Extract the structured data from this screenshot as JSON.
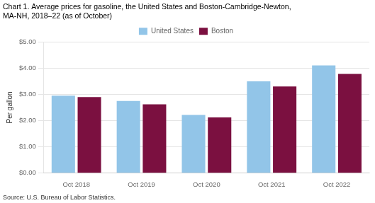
{
  "chart_data": {
    "type": "bar",
    "title": "Chart 1. Average prices for gasoline, the United States and Boston-Cambridge-Newton,\nMA-NH, 2018–22 (as of October)",
    "ylabel": "Per gallon",
    "source": "Source: U.S. Bureau of Labor Statistics.",
    "categories": [
      "Oct 2018",
      "Oct 2019",
      "Oct 2020",
      "Oct 2021",
      "Oct 2022"
    ],
    "series": [
      {
        "name": "United States",
        "color": "#92C5E8",
        "values": [
          2.95,
          2.75,
          2.22,
          3.5,
          4.1
        ]
      },
      {
        "name": "Boston",
        "color": "#7B1040",
        "values": [
          2.9,
          2.62,
          2.12,
          3.3,
          3.78
        ]
      }
    ],
    "ylim": [
      0,
      5.0
    ],
    "yticks": [
      {
        "value": 0.0,
        "label": "$0.00"
      },
      {
        "value": 1.0,
        "label": "$1.00"
      },
      {
        "value": 2.0,
        "label": "$2.00"
      },
      {
        "value": 3.0,
        "label": "$3.00"
      },
      {
        "value": 4.0,
        "label": "$4.00"
      },
      {
        "value": 5.0,
        "label": "$5.00"
      }
    ],
    "grid": true,
    "legend": "top"
  }
}
